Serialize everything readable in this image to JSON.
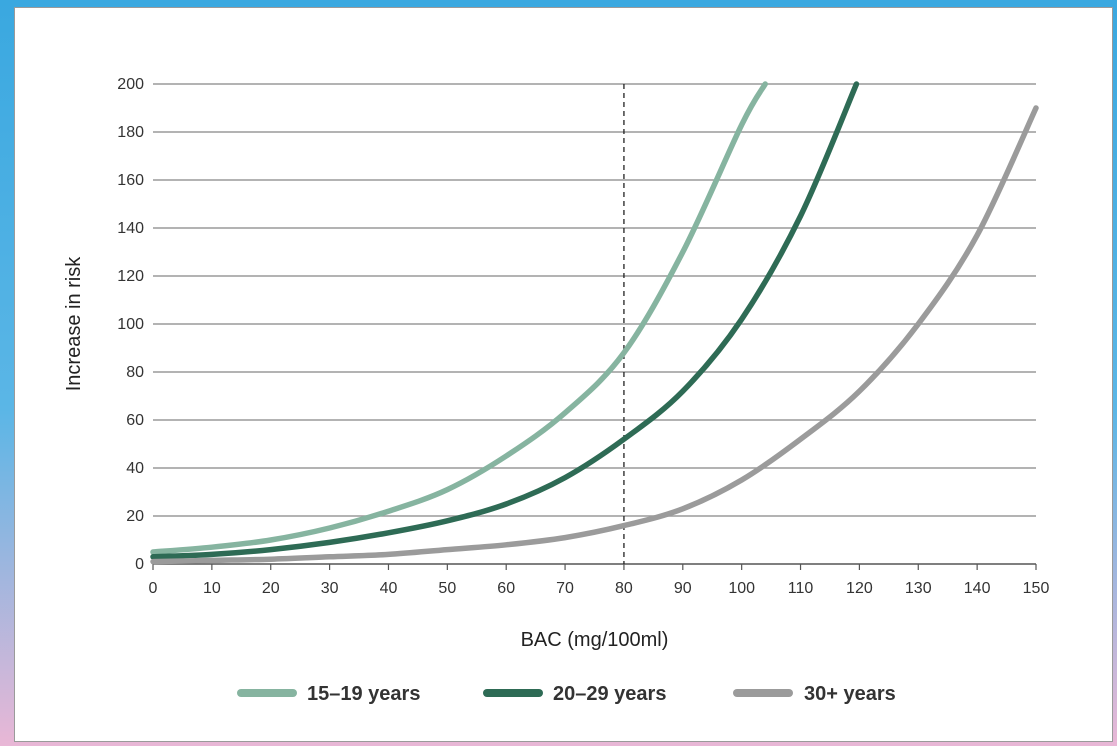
{
  "chart_data": {
    "type": "line",
    "title": "",
    "xlabel": "BAC (mg/100ml)",
    "ylabel": "Increase in risk",
    "xlim": [
      0,
      150
    ],
    "ylim": [
      0,
      200
    ],
    "x_ticks": [
      0,
      10,
      20,
      30,
      40,
      50,
      60,
      70,
      80,
      90,
      100,
      110,
      120,
      130,
      140,
      150
    ],
    "y_ticks": [
      0,
      20,
      40,
      60,
      80,
      100,
      120,
      140,
      160,
      180,
      200
    ],
    "grid": "horizontal",
    "reference_line": {
      "x": 80,
      "style": "dashed"
    },
    "legend_position": "bottom",
    "series": [
      {
        "name": "15–19 years",
        "color": "#86b4a0",
        "x": [
          0,
          10,
          20,
          30,
          40,
          50,
          60,
          70,
          80,
          90,
          100,
          104
        ],
        "y": [
          5,
          7,
          10,
          15,
          22,
          31,
          45,
          63,
          88,
          130,
          183,
          200
        ]
      },
      {
        "name": "20–29 years",
        "color": "#2e6b55",
        "x": [
          0,
          10,
          20,
          30,
          40,
          50,
          60,
          70,
          80,
          90,
          100,
          110,
          119.5
        ],
        "y": [
          3,
          4,
          6,
          9,
          13,
          18,
          25,
          36,
          52,
          72,
          102,
          145,
          200
        ]
      },
      {
        "name": "30+ years",
        "color": "#9b9b9b",
        "x": [
          0,
          10,
          20,
          30,
          40,
          50,
          60,
          70,
          80,
          90,
          100,
          110,
          120,
          130,
          140,
          150
        ],
        "y": [
          1,
          1.5,
          2,
          3,
          4,
          6,
          8,
          11,
          16,
          23,
          35,
          52,
          72,
          100,
          137,
          190
        ]
      }
    ]
  }
}
